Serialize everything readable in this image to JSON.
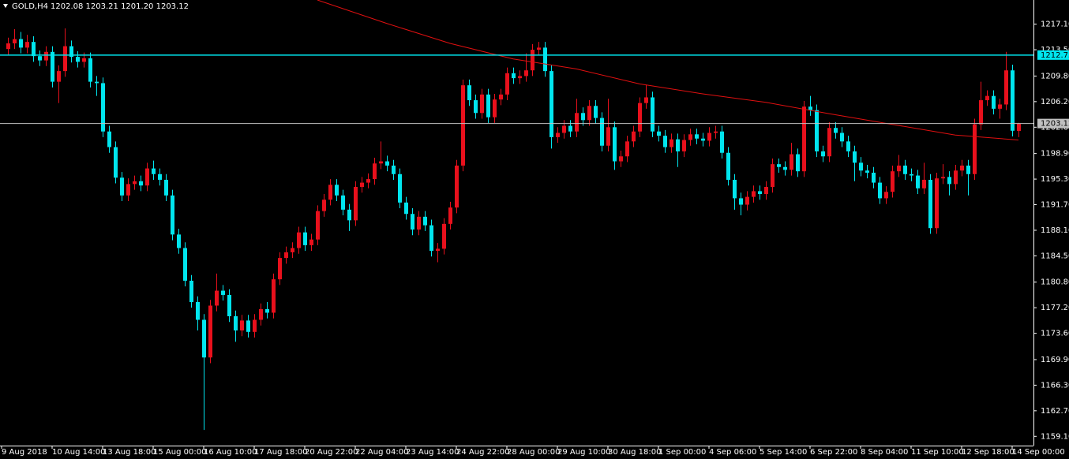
{
  "chart_data": {
    "type": "candlestick",
    "header": {
      "symbol": "GOLD,H4",
      "quote": "1202.08 1203.21 1201.20 1203.12"
    },
    "up_color": "#e8101c",
    "down_color": "#00e5ee",
    "ylim": [
      1157.8,
      1220.5
    ],
    "yticks": [
      {
        "value": 1217.1,
        "label": "1217.10"
      },
      {
        "value": 1213.5,
        "label": "1213.50"
      },
      {
        "value": 1209.8,
        "label": "1209.80"
      },
      {
        "value": 1206.2,
        "label": "1206.20"
      },
      {
        "value": 1202.6,
        "label": "1202.60"
      },
      {
        "value": 1198.9,
        "label": "1198.90"
      },
      {
        "value": 1195.3,
        "label": "1195.30"
      },
      {
        "value": 1191.7,
        "label": "1191.70"
      },
      {
        "value": 1188.1,
        "label": "1188.10"
      },
      {
        "value": 1184.5,
        "label": "1184.50"
      },
      {
        "value": 1180.8,
        "label": "1180.80"
      },
      {
        "value": 1177.2,
        "label": "1177.20"
      },
      {
        "value": 1173.6,
        "label": "1173.60"
      },
      {
        "value": 1169.9,
        "label": "1169.90"
      },
      {
        "value": 1166.3,
        "label": "1166.30"
      },
      {
        "value": 1162.7,
        "label": "1162.70"
      },
      {
        "value": 1159.1,
        "label": "1159.10"
      }
    ],
    "hlines": [
      {
        "value": 1212.75,
        "color": "#00e5ee"
      },
      {
        "value": 1203.12,
        "color": "#c0c0c0"
      }
    ],
    "ma": {
      "color": "#e01010",
      "x": [
        49,
        60,
        70,
        80,
        90,
        100,
        110,
        120,
        130,
        140,
        150,
        160
      ],
      "values": [
        1220.5,
        1217.2,
        1214.4,
        1212.2,
        1210.8,
        1208.7,
        1207.3,
        1206.1,
        1204.5,
        1203.0,
        1201.5,
        1200.8
      ]
    },
    "categories": [
      "9 Aug 2018",
      null,
      null,
      null,
      null,
      null,
      null,
      "10 Aug 14:00",
      null,
      null,
      null,
      null,
      null,
      null,
      null,
      "13 Aug 18:00",
      null,
      null,
      null,
      null,
      null,
      null,
      null,
      "15 Aug 00:00",
      null,
      null,
      null,
      null,
      null,
      null,
      null,
      "16 Aug 10:00",
      null,
      null,
      null,
      null,
      null,
      null,
      null,
      "17 Aug 18:00",
      null,
      null,
      null,
      null,
      null,
      null,
      null,
      "20 Aug 22:00",
      null,
      null,
      null,
      null,
      null,
      null,
      null,
      "22 Aug 04:00",
      null,
      null,
      null,
      null,
      null,
      null,
      null,
      "23 Aug 14:00",
      null,
      null,
      null,
      null,
      null,
      null,
      null,
      "24 Aug 22:00",
      null,
      null,
      null,
      null,
      null,
      null,
      null,
      "28 Aug 00:00",
      null,
      null,
      null,
      null,
      null,
      null,
      null,
      "29 Aug 10:00",
      null,
      null,
      null,
      null,
      null,
      null,
      null,
      "30 Aug 18:00",
      null,
      null,
      null,
      null,
      null,
      null,
      null,
      "1 Sep 00:00",
      null,
      null,
      null,
      null,
      null,
      null,
      null,
      "4 Sep 06:00",
      null,
      null,
      null,
      null,
      null,
      null,
      null,
      "5 Sep 14:00",
      null,
      null,
      null,
      null,
      null,
      null,
      null,
      "6 Sep 22:00",
      null,
      null,
      null,
      null,
      null,
      null,
      null,
      "8 Sep 04:00",
      null,
      null,
      null,
      null,
      null,
      null,
      null,
      "11 Sep 10:00",
      null,
      null,
      null,
      null,
      null,
      null,
      null,
      "12 Sep 18:00",
      null,
      null,
      null,
      null,
      null,
      null,
      null,
      "14 Sep 00:00",
      null
    ],
    "ohlc": [
      [
        1213.6,
        1215.2,
        1212.8,
        1214.4
      ],
      [
        1214.4,
        1216.4,
        1213.6,
        1215.0
      ],
      [
        1215.0,
        1216.0,
        1213.0,
        1213.8
      ],
      [
        1213.8,
        1215.6,
        1213.0,
        1214.6
      ],
      [
        1214.6,
        1215.4,
        1211.8,
        1212.6
      ],
      [
        1212.6,
        1213.4,
        1211.2,
        1212.0
      ],
      [
        1212.0,
        1214.0,
        1211.2,
        1213.2
      ],
      [
        1213.2,
        1214.0,
        1208.2,
        1209.0
      ],
      [
        1209.0,
        1211.3,
        1206.0,
        1210.5
      ],
      [
        1210.5,
        1216.5,
        1209.7,
        1214.0
      ],
      [
        1214.0,
        1214.8,
        1211.7,
        1212.5
      ],
      [
        1212.5,
        1213.3,
        1211.0,
        1211.8
      ],
      [
        1211.8,
        1213.1,
        1211.0,
        1212.3
      ],
      [
        1212.3,
        1213.1,
        1208.2,
        1209.0
      ],
      [
        1209.0,
        1209.8,
        1207.0,
        1208.8
      ],
      [
        1208.8,
        1209.6,
        1201.2,
        1202.0
      ],
      [
        1202.0,
        1202.8,
        1199.0,
        1199.8
      ],
      [
        1199.8,
        1200.6,
        1194.7,
        1195.5
      ],
      [
        1195.5,
        1196.3,
        1192.2,
        1193.0
      ],
      [
        1193.0,
        1195.4,
        1192.2,
        1194.6
      ],
      [
        1194.6,
        1195.8,
        1193.8,
        1195.0
      ],
      [
        1195.0,
        1195.8,
        1193.6,
        1194.4
      ],
      [
        1194.4,
        1197.6,
        1193.6,
        1196.8
      ],
      [
        1196.8,
        1197.9,
        1195.2,
        1196.0
      ],
      [
        1196.0,
        1196.8,
        1194.4,
        1195.2
      ],
      [
        1195.2,
        1196.0,
        1192.2,
        1193.0
      ],
      [
        1193.0,
        1193.8,
        1186.7,
        1187.5
      ],
      [
        1187.5,
        1188.3,
        1184.8,
        1185.6
      ],
      [
        1185.6,
        1186.4,
        1180.2,
        1181.0
      ],
      [
        1181.0,
        1181.8,
        1177.2,
        1178.0
      ],
      [
        1178.0,
        1178.8,
        1174.0,
        1175.5
      ],
      [
        1175.5,
        1176.3,
        1160.0,
        1170.2
      ],
      [
        1170.2,
        1178.3,
        1169.4,
        1177.5
      ],
      [
        1177.5,
        1182.0,
        1176.7,
        1179.6
      ],
      [
        1179.6,
        1180.4,
        1178.2,
        1179.0
      ],
      [
        1179.0,
        1179.8,
        1175.2,
        1176.0
      ],
      [
        1176.0,
        1176.8,
        1172.4,
        1174.0
      ],
      [
        1174.0,
        1176.2,
        1173.2,
        1175.4
      ],
      [
        1175.4,
        1176.2,
        1173.0,
        1173.8
      ],
      [
        1173.8,
        1176.3,
        1173.0,
        1175.5
      ],
      [
        1175.5,
        1177.8,
        1174.7,
        1177.0
      ],
      [
        1177.0,
        1178.0,
        1175.7,
        1176.5
      ],
      [
        1176.5,
        1182.0,
        1175.7,
        1181.2
      ],
      [
        1181.2,
        1185.0,
        1180.4,
        1184.2
      ],
      [
        1184.2,
        1185.8,
        1183.4,
        1185.0
      ],
      [
        1185.0,
        1186.4,
        1184.2,
        1185.6
      ],
      [
        1185.6,
        1188.6,
        1184.8,
        1187.8
      ],
      [
        1187.8,
        1188.6,
        1185.2,
        1186.0
      ],
      [
        1186.0,
        1187.6,
        1185.2,
        1186.8
      ],
      [
        1186.8,
        1191.6,
        1186.0,
        1190.8
      ],
      [
        1190.8,
        1193.2,
        1190.0,
        1192.4
      ],
      [
        1192.4,
        1195.3,
        1191.6,
        1194.5
      ],
      [
        1194.5,
        1195.3,
        1192.2,
        1193.0
      ],
      [
        1193.0,
        1193.8,
        1190.2,
        1191.0
      ],
      [
        1191.0,
        1191.8,
        1188.0,
        1189.5
      ],
      [
        1189.5,
        1195.0,
        1188.7,
        1194.2
      ],
      [
        1194.2,
        1195.6,
        1193.4,
        1194.8
      ],
      [
        1194.8,
        1196.1,
        1194.0,
        1195.3
      ],
      [
        1195.3,
        1198.3,
        1194.5,
        1197.5
      ],
      [
        1197.5,
        1200.6,
        1196.7,
        1197.8
      ],
      [
        1197.8,
        1198.6,
        1196.4,
        1197.2
      ],
      [
        1197.2,
        1198.0,
        1195.2,
        1196.0
      ],
      [
        1196.0,
        1196.8,
        1191.2,
        1192.0
      ],
      [
        1192.0,
        1192.8,
        1189.6,
        1190.4
      ],
      [
        1190.4,
        1191.2,
        1187.4,
        1188.2
      ],
      [
        1188.2,
        1190.8,
        1187.4,
        1190.0
      ],
      [
        1190.0,
        1190.8,
        1188.0,
        1188.8
      ],
      [
        1188.8,
        1189.6,
        1184.4,
        1185.2
      ],
      [
        1185.2,
        1186.3,
        1183.6,
        1185.5
      ],
      [
        1185.5,
        1189.8,
        1184.7,
        1189.0
      ],
      [
        1189.0,
        1192.1,
        1188.2,
        1191.3
      ],
      [
        1191.3,
        1198.0,
        1190.5,
        1197.2
      ],
      [
        1197.2,
        1209.3,
        1196.4,
        1208.5
      ],
      [
        1208.5,
        1209.3,
        1205.6,
        1206.4
      ],
      [
        1206.4,
        1207.2,
        1203.8,
        1204.6
      ],
      [
        1204.6,
        1208.0,
        1203.8,
        1207.2
      ],
      [
        1207.2,
        1208.0,
        1203.2,
        1204.0
      ],
      [
        1204.0,
        1207.3,
        1203.2,
        1206.5
      ],
      [
        1206.5,
        1208.0,
        1205.7,
        1207.2
      ],
      [
        1207.2,
        1211.0,
        1206.4,
        1210.2
      ],
      [
        1210.2,
        1211.0,
        1208.7,
        1209.5
      ],
      [
        1209.5,
        1210.6,
        1208.7,
        1209.8
      ],
      [
        1209.8,
        1213.0,
        1209.0,
        1210.6
      ],
      [
        1210.6,
        1214.3,
        1209.8,
        1213.5
      ],
      [
        1213.5,
        1214.6,
        1212.7,
        1213.8
      ],
      [
        1213.8,
        1214.6,
        1209.7,
        1210.5
      ],
      [
        1210.5,
        1211.3,
        1199.6,
        1201.2
      ],
      [
        1201.2,
        1202.6,
        1200.4,
        1201.8
      ],
      [
        1201.8,
        1203.6,
        1201.0,
        1202.8
      ],
      [
        1202.8,
        1203.6,
        1201.2,
        1202.0
      ],
      [
        1202.0,
        1206.6,
        1201.2,
        1204.6
      ],
      [
        1204.6,
        1205.4,
        1202.8,
        1203.6
      ],
      [
        1203.6,
        1206.4,
        1202.8,
        1205.6
      ],
      [
        1205.6,
        1206.4,
        1203.1,
        1203.9
      ],
      [
        1203.9,
        1204.7,
        1199.2,
        1200.0
      ],
      [
        1200.0,
        1206.6,
        1199.2,
        1202.6
      ],
      [
        1202.6,
        1203.4,
        1196.6,
        1197.8
      ],
      [
        1197.8,
        1199.3,
        1197.0,
        1198.5
      ],
      [
        1198.5,
        1201.4,
        1197.7,
        1200.6
      ],
      [
        1200.6,
        1202.8,
        1199.8,
        1202.0
      ],
      [
        1202.0,
        1206.8,
        1201.2,
        1206.0
      ],
      [
        1206.0,
        1208.6,
        1205.2,
        1206.8
      ],
      [
        1206.8,
        1207.6,
        1201.2,
        1202.0
      ],
      [
        1202.0,
        1202.8,
        1200.6,
        1201.4
      ],
      [
        1201.4,
        1202.2,
        1199.0,
        1199.8
      ],
      [
        1199.8,
        1201.7,
        1199.0,
        1200.9
      ],
      [
        1200.9,
        1201.7,
        1197.0,
        1199.2
      ],
      [
        1199.2,
        1201.6,
        1198.4,
        1200.8
      ],
      [
        1200.8,
        1202.4,
        1200.0,
        1201.6
      ],
      [
        1201.6,
        1202.4,
        1200.2,
        1201.0
      ],
      [
        1201.0,
        1201.8,
        1199.9,
        1200.7
      ],
      [
        1200.7,
        1202.6,
        1199.9,
        1201.8
      ],
      [
        1201.8,
        1202.8,
        1201.0,
        1202.0
      ],
      [
        1202.0,
        1202.8,
        1198.2,
        1199.0
      ],
      [
        1199.0,
        1199.8,
        1194.4,
        1195.2
      ],
      [
        1195.2,
        1196.0,
        1191.0,
        1192.6
      ],
      [
        1192.6,
        1193.4,
        1190.2,
        1191.7
      ],
      [
        1191.7,
        1193.6,
        1190.9,
        1192.8
      ],
      [
        1192.8,
        1194.4,
        1192.0,
        1193.6
      ],
      [
        1193.6,
        1194.4,
        1192.4,
        1193.2
      ],
      [
        1193.2,
        1195.0,
        1192.4,
        1194.2
      ],
      [
        1194.2,
        1198.2,
        1193.4,
        1197.4
      ],
      [
        1197.4,
        1198.2,
        1196.2,
        1197.0
      ],
      [
        1197.0,
        1197.8,
        1195.8,
        1196.6
      ],
      [
        1196.6,
        1200.4,
        1195.8,
        1198.8
      ],
      [
        1198.8,
        1199.6,
        1195.6,
        1196.4
      ],
      [
        1196.4,
        1206.3,
        1195.6,
        1205.5
      ],
      [
        1205.5,
        1207.0,
        1204.2,
        1205.0
      ],
      [
        1205.0,
        1205.8,
        1198.4,
        1199.2
      ],
      [
        1199.2,
        1200.0,
        1197.7,
        1198.5
      ],
      [
        1198.5,
        1203.3,
        1197.7,
        1202.5
      ],
      [
        1202.5,
        1203.3,
        1201.0,
        1201.8
      ],
      [
        1201.8,
        1202.6,
        1199.8,
        1200.6
      ],
      [
        1200.6,
        1201.4,
        1198.4,
        1199.2
      ],
      [
        1199.2,
        1200.0,
        1195.0,
        1197.6
      ],
      [
        1197.6,
        1198.4,
        1195.7,
        1196.5
      ],
      [
        1196.5,
        1197.3,
        1195.4,
        1196.2
      ],
      [
        1196.2,
        1197.0,
        1194.0,
        1194.8
      ],
      [
        1194.8,
        1195.6,
        1191.8,
        1192.6
      ],
      [
        1192.6,
        1194.3,
        1191.8,
        1193.5
      ],
      [
        1193.5,
        1197.2,
        1192.7,
        1196.4
      ],
      [
        1196.4,
        1198.7,
        1195.6,
        1197.2
      ],
      [
        1197.2,
        1198.0,
        1195.2,
        1196.0
      ],
      [
        1196.0,
        1196.8,
        1195.0,
        1195.8
      ],
      [
        1195.8,
        1196.6,
        1193.2,
        1194.0
      ],
      [
        1194.0,
        1197.6,
        1193.2,
        1195.2
      ],
      [
        1195.2,
        1196.0,
        1187.6,
        1188.4
      ],
      [
        1188.4,
        1196.2,
        1187.6,
        1195.4
      ],
      [
        1195.4,
        1197.4,
        1194.6,
        1195.6
      ],
      [
        1195.6,
        1196.4,
        1193.0,
        1194.6
      ],
      [
        1194.6,
        1197.3,
        1193.8,
        1196.5
      ],
      [
        1196.5,
        1198.0,
        1195.7,
        1197.2
      ],
      [
        1197.2,
        1198.0,
        1193.0,
        1196.0
      ],
      [
        1196.0,
        1203.8,
        1195.2,
        1203.0
      ],
      [
        1203.0,
        1209.0,
        1202.2,
        1206.4
      ],
      [
        1206.4,
        1207.8,
        1205.6,
        1207.0
      ],
      [
        1207.0,
        1207.8,
        1204.4,
        1205.2
      ],
      [
        1205.2,
        1206.6,
        1203.8,
        1205.8
      ],
      [
        1205.8,
        1213.2,
        1205.0,
        1210.6
      ],
      [
        1210.6,
        1211.4,
        1201.3,
        1202.1
      ],
      [
        1202.08,
        1203.21,
        1201.2,
        1203.12
      ]
    ]
  }
}
